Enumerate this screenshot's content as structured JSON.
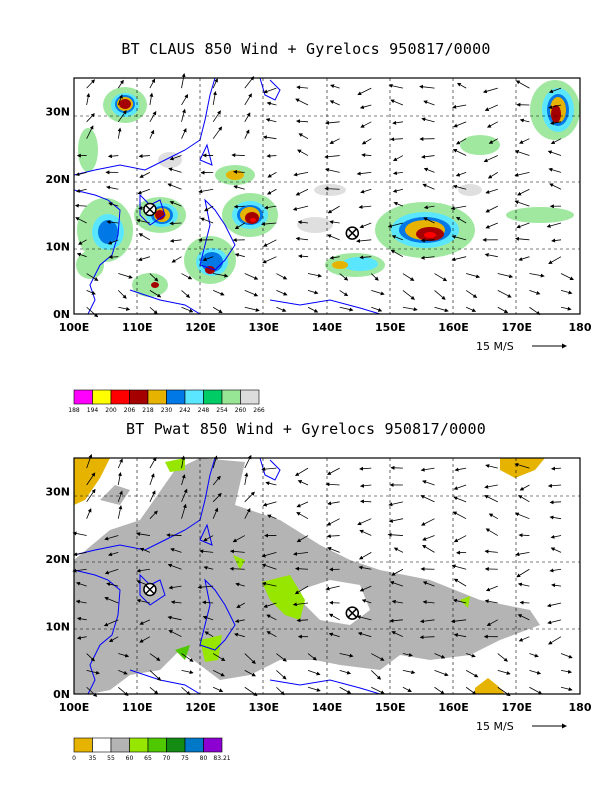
{
  "panels": [
    {
      "id": "top",
      "title": "BT CLAUS 850 Wind + Gyrelocs 950817/0000",
      "y_ticks": [
        "0N",
        "10N",
        "20N",
        "30N"
      ],
      "x_ticks": [
        "100E",
        "110E",
        "120E",
        "130E",
        "140E",
        "150E",
        "160E",
        "170E",
        "180"
      ],
      "vector_ref_label": "15 M/S",
      "legend_colors": [
        "#ff00ff",
        "#ffff00",
        "#ff0000",
        "#a50000",
        "#e6b400",
        "#0078e6",
        "#5ae6ff",
        "#00cc66",
        "#96e696",
        "#dcdcdc"
      ],
      "legend_labels": [
        "188",
        "194",
        "200",
        "206",
        "218",
        "230",
        "242",
        "248",
        "254",
        "260",
        "266"
      ],
      "gyre_markers": [
        {
          "lon": 112,
          "lat": 15.5
        },
        {
          "lon": 144,
          "lat": 12
        }
      ]
    },
    {
      "id": "bottom",
      "title": "BT Pwat 850 Wind + Gyrelocs 950817/0000",
      "y_ticks": [
        "0N",
        "10N",
        "20N",
        "30N"
      ],
      "x_ticks": [
        "100E",
        "110E",
        "120E",
        "130E",
        "140E",
        "150E",
        "160E",
        "170E",
        "180"
      ],
      "vector_ref_label": "15 M/S",
      "legend_colors": [
        "#e6b400",
        "#ffffff",
        "#b4b4b4",
        "#96e600",
        "#50c800",
        "#148c14",
        "#0078c8",
        "#8c00d2"
      ],
      "legend_labels": [
        "0",
        "35",
        "55",
        "60",
        "65",
        "70",
        "75",
        "80",
        "83.21"
      ],
      "gyre_markers": [
        {
          "lon": 112,
          "lat": 15.5
        },
        {
          "lon": 144,
          "lat": 12
        }
      ]
    }
  ],
  "map_extent": {
    "lon_min": 100,
    "lon_max": 180,
    "lat_min": 0,
    "lat_max": 35
  },
  "colors": {
    "coastline": "#0000ff",
    "grid": "#000000",
    "frame": "#000000"
  }
}
